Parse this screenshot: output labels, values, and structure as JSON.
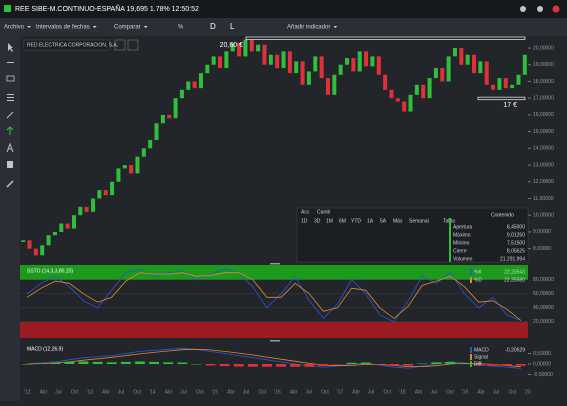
{
  "title_bar": {
    "title": "REE SIBE-M.CONTINUO-ESPAÑA 19,695 1.78% 12:50:52"
  },
  "toolbar": {
    "items": [
      "Archivo",
      "Intervalos de fechas",
      "Comparar",
      "%",
      "D",
      "L",
      "Añadir indicador"
    ]
  },
  "price_chart": {
    "type": "candlestick",
    "name": "RED ELECTRICA CORPORACION, S.A.",
    "open": [
      8.4,
      8.5,
      8,
      7.6,
      8.2,
      8.8,
      9,
      9.5,
      9.2,
      10,
      10.5,
      10.2,
      11,
      11.5,
      11.2,
      12,
      12.8,
      13,
      12.5,
      13.5,
      14,
      14.5,
      15.5,
      16,
      15.8,
      17,
      17.5,
      18,
      17.6,
      18.5,
      19,
      19.5,
      18.8,
      19.8,
      20.3,
      19.5,
      20.5,
      19.8,
      20.2,
      19,
      19.6,
      18.8,
      19.8,
      18.5,
      19.2,
      17.8,
      18.6,
      19.5,
      18.2,
      17.2,
      18.4,
      19,
      19.4,
      18.6,
      19.8,
      18.9,
      19.5,
      18.4,
      17.5,
      17,
      16.8,
      16.2,
      17.2,
      17.8,
      17,
      18.2,
      18.8,
      18,
      19.5,
      20,
      19,
      19.6,
      18.5,
      19.2,
      17.8,
      17.5,
      18.2,
      17.6,
      17.8,
      18.4
    ],
    "close": [
      8.5,
      8,
      7.6,
      8.2,
      8.8,
      9,
      9.5,
      9.2,
      10,
      10.5,
      10.2,
      11,
      11.5,
      11.2,
      12,
      12.8,
      13,
      12.5,
      13.5,
      14,
      14.5,
      15.5,
      16,
      15.8,
      17,
      17.5,
      18,
      17.6,
      18.5,
      19,
      19.5,
      18.8,
      19.8,
      20.3,
      19.5,
      20.5,
      19.8,
      20.2,
      19,
      19.6,
      18.8,
      19.8,
      18.5,
      19.2,
      17.8,
      18.6,
      19.5,
      18.2,
      17.2,
      18.4,
      19,
      19.4,
      18.6,
      19.8,
      18.9,
      19.5,
      18.4,
      17.5,
      17,
      16.8,
      16.2,
      17.2,
      17.8,
      17,
      18.2,
      18.8,
      18,
      19.5,
      20,
      19,
      19.6,
      18.5,
      19.2,
      17.8,
      17.5,
      18.2,
      17.6,
      17.8,
      18.4,
      19.6
    ],
    "up_color": "#2fbf3a",
    "down_color": "#e0303a",
    "ylim": [
      7.2,
      20.6
    ],
    "yticks": [
      {
        "value": 20,
        "label": "20,00000"
      },
      {
        "value": 19,
        "label": "19,00000"
      },
      {
        "value": 18,
        "label": "18,00000"
      },
      {
        "value": 17,
        "label": "17,00000"
      },
      {
        "value": 16,
        "label": "16,00000"
      },
      {
        "value": 15,
        "label": "15,00000"
      },
      {
        "value": 14,
        "label": "14,00000"
      },
      {
        "value": 13,
        "label": "13,00000"
      },
      {
        "value": 12,
        "label": "12,00000"
      },
      {
        "value": 11,
        "label": "11,00000"
      },
      {
        "value": 10,
        "label": "10,00000"
      },
      {
        "value": 9,
        "label": "9,00000"
      },
      {
        "value": 8,
        "label": "8,00000"
      }
    ],
    "annotations": [
      {
        "label": "20,60 €",
        "value": 20.6
      },
      {
        "label": "17 €",
        "value": 17
      }
    ]
  },
  "data_panel": {
    "tabs": [
      "Acc",
      "Camb"
    ],
    "ranges": [
      "1D",
      "3D",
      "1M",
      "6M",
      "YTD",
      "1A",
      "5A",
      "Más",
      "Semanal",
      "Tabla"
    ],
    "content_label": "Contenido",
    "rows": [
      [
        "Apertura",
        "8,45000"
      ],
      [
        "Máximo",
        "9,01250"
      ],
      [
        "Mínimo",
        "7,51500"
      ],
      [
        "Cierre",
        "8,05625"
      ],
      [
        "Volumen",
        "21.291.994"
      ]
    ]
  },
  "stochastic": {
    "name": "SSTO (14,3,3,80,20)",
    "ylim": [
      -3,
      101
    ],
    "upper": 80,
    "lower": 20,
    "yticks": [
      {
        "value": 80,
        "label": "80,00000"
      },
      {
        "value": 60,
        "label": "60,00000"
      },
      {
        "value": 40,
        "label": "40,00000"
      },
      {
        "value": 20,
        "label": "20,00000"
      }
    ],
    "series": [
      {
        "name": "%K",
        "last": "22,20543",
        "color": "#2a55e0",
        "values": [
          60,
          75,
          85,
          70,
          50,
          40,
          65,
          90,
          95,
          85,
          90,
          92,
          80,
          88,
          95,
          90,
          70,
          40,
          60,
          85,
          50,
          25,
          45,
          80,
          60,
          30,
          20,
          50,
          85,
          75,
          90,
          60,
          40,
          55,
          30,
          22
        ]
      },
      {
        "name": "%D",
        "last": "22,35580",
        "color": "#e08a2a",
        "values": [
          55,
          68,
          78,
          75,
          60,
          48,
          55,
          78,
          90,
          88,
          88,
          90,
          85,
          86,
          90,
          90,
          80,
          55,
          55,
          75,
          60,
          35,
          40,
          68,
          65,
          40,
          25,
          42,
          72,
          78,
          85,
          70,
          48,
          50,
          38,
          22
        ]
      }
    ]
  },
  "macd": {
    "name": "MACD (12,26,9)",
    "ylim": [
      -1,
      1
    ],
    "yticks": [
      {
        "value": 0.5,
        "label": "0,50000"
      },
      {
        "value": 0,
        "label": "0,00000"
      },
      {
        "value": -0.5,
        "label": "-0,50000"
      }
    ],
    "series": [
      {
        "name": "MACD",
        "last": "-0,20629",
        "color": "#2a55e0",
        "values": [
          0,
          0.05,
          0.1,
          0.2,
          0.3,
          0.35,
          0.4,
          0.5,
          0.6,
          0.65,
          0.7,
          0.75,
          0.7,
          0.6,
          0.5,
          0.4,
          0.3,
          0.2,
          0.1,
          0,
          -0.1,
          -0.15,
          -0.1,
          0,
          0.05,
          -0.05,
          -0.15,
          -0.2,
          -0.1,
          0,
          0.1,
          0.05,
          -0.05,
          -0.1,
          -0.15,
          -0.21
        ]
      },
      {
        "name": "Signal",
        "color": "#e08a2a",
        "values": [
          0,
          0.02,
          0.05,
          0.1,
          0.18,
          0.25,
          0.32,
          0.4,
          0.48,
          0.55,
          0.62,
          0.68,
          0.7,
          0.67,
          0.6,
          0.52,
          0.43,
          0.33,
          0.23,
          0.13,
          0.03,
          -0.05,
          -0.08,
          -0.06,
          -0.02,
          -0.02,
          -0.07,
          -0.12,
          -0.12,
          -0.08,
          0,
          0.03,
          0.02,
          -0.02,
          -0.07,
          -0.13
        ]
      },
      {
        "name": "Diff",
        "color": "#2fbf3a",
        "values": [
          0,
          0.03,
          0.05,
          0.1,
          0.12,
          0.1,
          0.08,
          0.1,
          0.12,
          0.1,
          0.08,
          0.07,
          0,
          -0.07,
          -0.1,
          -0.12,
          -0.13,
          -0.13,
          -0.13,
          -0.13,
          -0.13,
          -0.1,
          -0.02,
          0.06,
          0.07,
          -0.03,
          -0.08,
          -0.08,
          0.02,
          0.08,
          0.1,
          0.02,
          -0.07,
          -0.08,
          -0.08,
          -0.08
        ]
      }
    ]
  },
  "x_axis": {
    "labels": [
      "'12",
      "Abr",
      "Jul",
      "Oct",
      "'13",
      "Abr",
      "Jul",
      "Oct",
      "'14",
      "Abr",
      "Jul",
      "Oct",
      "'15",
      "Abr",
      "Jul",
      "Oct",
      "'16",
      "Abr",
      "Jul",
      "Oct",
      "'17",
      "Abr",
      "Jul",
      "Oct",
      "'18",
      "Abr",
      "Jul",
      "Oct",
      "'19",
      "Abr",
      "Jul",
      "Oct",
      "'20"
    ]
  }
}
